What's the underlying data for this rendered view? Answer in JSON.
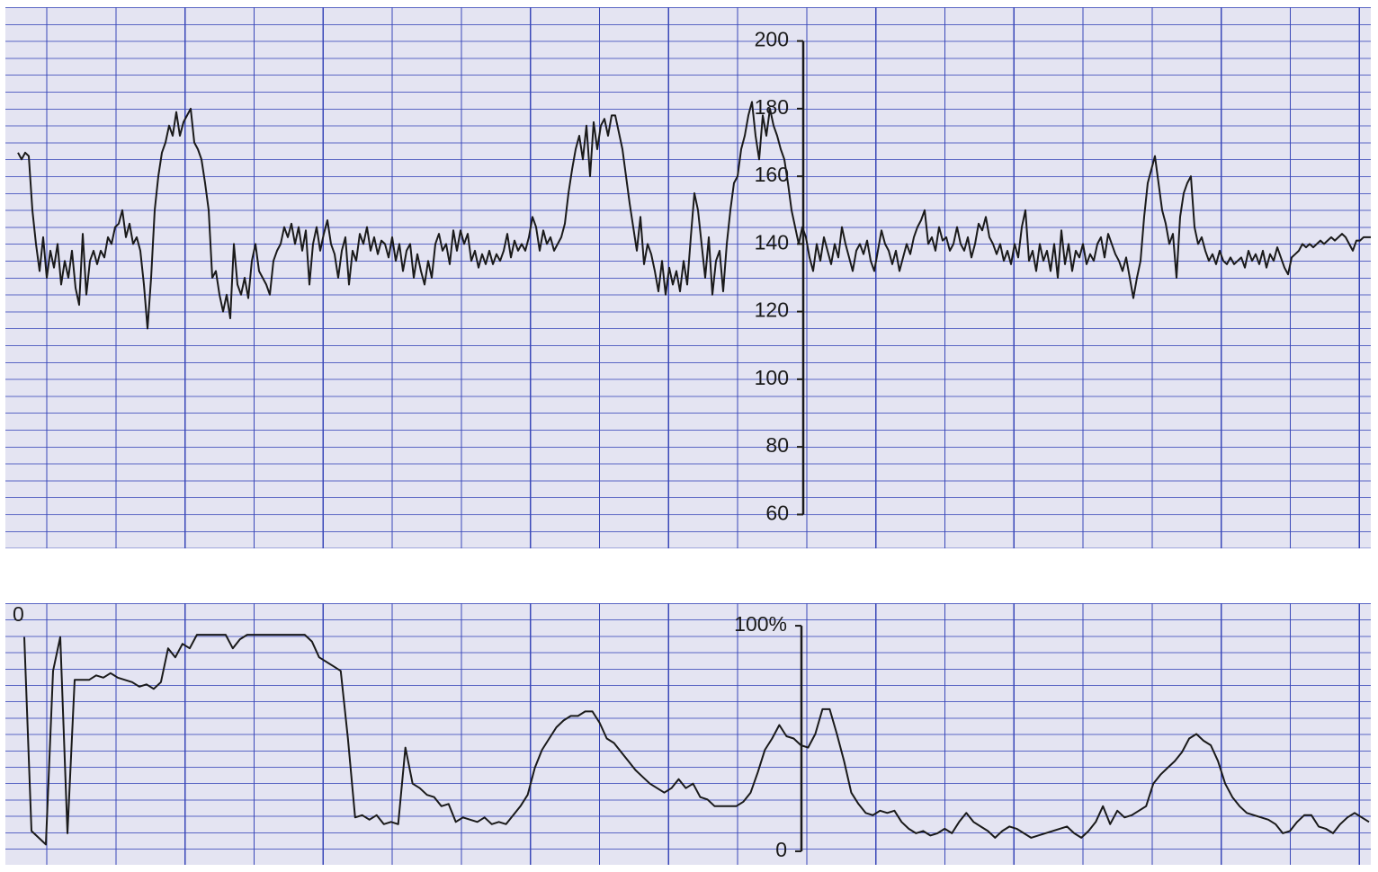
{
  "chart_data": [
    {
      "type": "line",
      "color": "#1a1a1a",
      "ylim": [
        50,
        210
      ],
      "yticks": [
        60,
        80,
        100,
        120,
        140,
        160,
        180,
        200
      ],
      "values": [
        167,
        165,
        167,
        166,
        150,
        140,
        132,
        142,
        130,
        138,
        133,
        140,
        128,
        135,
        130,
        138,
        127,
        122,
        143,
        125,
        135,
        138,
        134,
        138,
        136,
        142,
        140,
        145,
        146,
        150,
        142,
        146,
        140,
        142,
        138,
        128,
        115,
        130,
        150,
        160,
        167,
        170,
        175,
        172,
        179,
        172,
        176,
        178,
        180,
        170,
        168,
        165,
        158,
        150,
        130,
        132,
        125,
        120,
        125,
        118,
        140,
        128,
        125,
        130,
        124,
        135,
        140,
        132,
        130,
        128,
        125,
        135,
        138,
        140,
        145,
        142,
        146,
        140,
        145,
        138,
        144,
        128,
        140,
        145,
        138,
        143,
        147,
        140,
        137,
        130,
        138,
        142,
        128,
        138,
        135,
        143,
        140,
        145,
        138,
        142,
        137,
        141,
        140,
        136,
        142,
        135,
        140,
        132,
        138,
        140,
        130,
        137,
        132,
        128,
        135,
        130,
        140,
        143,
        138,
        140,
        134,
        144,
        138,
        144,
        140,
        143,
        135,
        138,
        133,
        137,
        134,
        138,
        134,
        137,
        135,
        138,
        143,
        136,
        141,
        138,
        140,
        138,
        142,
        148,
        145,
        138,
        144,
        140,
        142,
        138,
        140,
        142,
        146,
        155,
        162,
        168,
        172,
        165,
        175,
        160,
        176,
        168,
        175,
        177,
        172,
        178,
        178,
        173,
        168,
        160,
        152,
        145,
        138,
        148,
        134,
        140,
        137,
        132,
        126,
        135,
        125,
        133,
        128,
        132,
        126,
        135,
        128,
        142,
        155,
        150,
        140,
        130,
        142,
        125,
        135,
        138,
        126,
        140,
        150,
        158,
        160,
        168,
        172,
        178,
        182,
        172,
        165,
        178,
        172,
        180,
        175,
        172,
        168,
        165,
        158,
        150,
        145,
        140,
        145,
        142,
        136,
        132,
        140,
        135,
        142,
        138,
        134,
        140,
        136,
        145,
        140,
        136,
        132,
        138,
        140,
        137,
        141,
        135,
        132,
        138,
        144,
        140,
        138,
        134,
        138,
        132,
        136,
        140,
        137,
        142,
        145,
        147,
        150,
        140,
        142,
        138,
        145,
        141,
        142,
        138,
        140,
        145,
        140,
        138,
        142,
        136,
        140,
        146,
        144,
        148,
        142,
        140,
        137,
        140,
        135,
        138,
        134,
        140,
        136,
        145,
        150,
        135,
        138,
        132,
        140,
        135,
        138,
        132,
        140,
        130,
        144,
        134,
        140,
        132,
        138,
        136,
        140,
        134,
        137,
        135,
        140,
        142,
        136,
        143,
        140,
        137,
        135,
        132,
        136,
        130,
        124,
        130,
        135,
        148,
        158,
        162,
        166,
        158,
        150,
        146,
        140,
        143,
        130,
        148,
        155,
        158,
        160,
        145,
        140,
        142,
        138,
        135,
        137,
        134,
        138,
        135,
        134,
        136,
        134,
        135,
        136,
        133,
        138,
        135,
        137,
        134,
        138,
        133,
        137,
        135,
        139,
        136,
        133,
        131,
        136,
        137,
        138,
        140,
        139,
        140,
        139,
        140,
        141,
        140,
        141,
        142,
        141,
        142,
        143,
        142,
        140,
        138,
        141,
        141,
        142,
        142,
        142
      ]
    },
    {
      "type": "line",
      "color": "#1a1a1a",
      "ylim": [
        -6,
        110
      ],
      "yticks": [
        0,
        {
          "value": 100,
          "label": "100%"
        }
      ],
      "annotation": "0",
      "values": [
        95,
        9,
        6,
        3,
        80,
        95,
        8,
        76,
        76,
        76,
        78,
        77,
        79,
        77,
        76,
        75,
        73,
        74,
        72,
        75,
        90,
        86,
        92,
        90,
        96,
        96,
        96,
        96,
        96,
        90,
        94,
        96,
        96,
        96,
        96,
        96,
        96,
        96,
        96,
        96,
        93,
        86,
        84,
        82,
        80,
        50,
        15,
        16,
        14,
        16,
        12,
        13,
        12,
        46,
        30,
        28,
        25,
        24,
        20,
        21,
        13,
        15,
        14,
        13,
        15,
        12,
        13,
        12,
        16,
        20,
        25,
        37,
        45,
        50,
        55,
        58,
        60,
        60,
        62,
        62,
        57,
        50,
        48,
        44,
        40,
        36,
        33,
        30,
        28,
        26,
        28,
        32,
        28,
        30,
        24,
        23,
        20,
        20,
        20,
        20,
        22,
        26,
        35,
        45,
        50,
        56,
        51,
        50,
        47,
        46,
        52,
        63,
        63,
        52,
        40,
        26,
        21,
        17,
        16,
        18,
        17,
        18,
        13,
        10,
        8,
        9,
        7,
        8,
        10,
        8,
        13,
        17,
        13,
        11,
        9,
        6,
        9,
        11,
        10,
        8,
        6,
        7,
        8,
        9,
        10,
        11,
        8,
        6,
        9,
        13,
        20,
        12,
        18,
        15,
        16,
        18,
        20,
        30,
        34,
        37,
        40,
        44,
        50,
        52,
        49,
        47,
        40,
        30,
        24,
        20,
        17,
        16,
        15,
        14,
        12,
        8,
        9,
        13,
        16,
        16,
        11,
        10,
        8,
        12,
        15,
        17,
        15,
        13
      ]
    }
  ]
}
